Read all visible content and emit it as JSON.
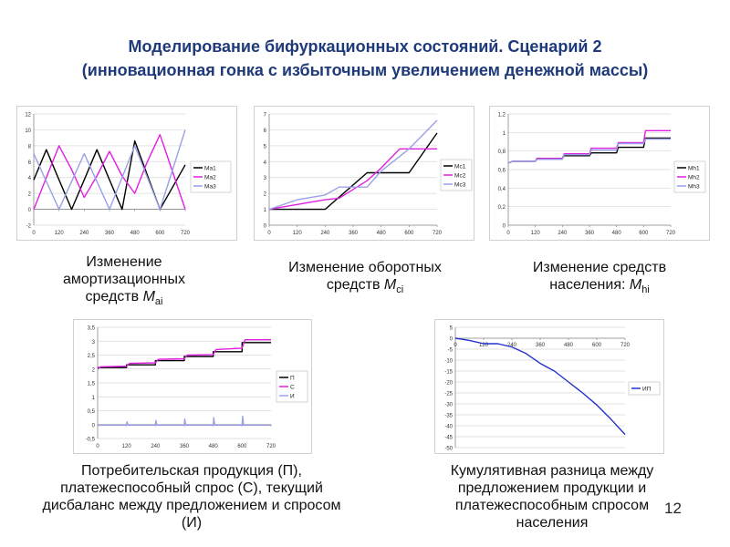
{
  "title_line1": "Моделирование бифуркационных состояний. Сценарий 2",
  "title_line2": "(инновационная гонка с избыточным увеличением денежной массы)",
  "page_number": "12",
  "captions": {
    "c1": {
      "text": "Изменение амортизационных средств ",
      "var": "M",
      "sub": "ai"
    },
    "c2": {
      "text": "Изменение оборотных средств ",
      "var": "M",
      "sub": "ci"
    },
    "c3": {
      "text": "Изменение средств населения: ",
      "var": "M",
      "sub": "hi"
    },
    "c4": {
      "text": "Потребительская продукция (П), платежеспособный спрос (С), текущий дисбаланс между предложением и спросом (И)"
    },
    "c5": {
      "text": "Кумулятивная разница между предложением продукции и платежеспособным спросом населения"
    }
  },
  "chart_data": [
    {
      "id": "ma",
      "type": "line",
      "xlim": [
        0,
        720
      ],
      "ylim": [
        -2,
        12
      ],
      "xticks": [
        "0",
        "120",
        "240",
        "360",
        "480",
        "600",
        "720"
      ],
      "yticks": [
        "-2",
        "0",
        "2",
        "4",
        "6",
        "8",
        "10",
        "12"
      ],
      "series": [
        {
          "name": "Ма1",
          "color": "#000000",
          "x": [
            0,
            60,
            120,
            180,
            240,
            300,
            360,
            420,
            480,
            540,
            600,
            660,
            720
          ],
          "y": [
            3.7,
            7.5,
            3.7,
            0,
            3.7,
            7.5,
            3.7,
            0,
            8.6,
            4.3,
            0,
            2.8,
            5.6
          ]
        },
        {
          "name": "Ма2",
          "color": "#e020e0",
          "x": [
            0,
            60,
            120,
            180,
            240,
            300,
            360,
            420,
            480,
            540,
            600,
            660,
            720
          ],
          "y": [
            0,
            4,
            8,
            5,
            1.5,
            4.2,
            7.3,
            4.2,
            2,
            6,
            9.4,
            4.7,
            0
          ]
        },
        {
          "name": "Ма3",
          "color": "#9aa0e6",
          "x": [
            0,
            60,
            120,
            180,
            240,
            300,
            360,
            420,
            480,
            540,
            600,
            660,
            720
          ],
          "y": [
            7,
            3.5,
            0,
            3.5,
            7,
            3.5,
            0,
            4,
            8,
            4,
            0,
            5,
            10
          ]
        }
      ]
    },
    {
      "id": "mc",
      "type": "line",
      "xlim": [
        0,
        720
      ],
      "ylim": [
        0,
        7
      ],
      "xticks": [
        "0",
        "120",
        "240",
        "360",
        "480",
        "600",
        "720"
      ],
      "yticks": [
        "0",
        "1",
        "2",
        "3",
        "4",
        "5",
        "6",
        "7"
      ],
      "series": [
        {
          "name": "Мс1",
          "color": "#000000",
          "x": [
            0,
            240,
            420,
            600,
            720
          ],
          "y": [
            1,
            1,
            3.3,
            3.3,
            5.8
          ]
        },
        {
          "name": "Мс2",
          "color": "#e020e0",
          "x": [
            0,
            240,
            300,
            420,
            480,
            560,
            600,
            720
          ],
          "y": [
            1,
            1.6,
            1.7,
            2.8,
            3.6,
            4.8,
            4.8,
            4.8
          ]
        },
        {
          "name": "Мс3",
          "color": "#9aa0e6",
          "x": [
            0,
            120,
            240,
            300,
            420,
            480,
            600,
            720
          ],
          "y": [
            1,
            1.6,
            1.9,
            2.4,
            2.4,
            3.4,
            4.8,
            6.6
          ]
        }
      ]
    },
    {
      "id": "mh",
      "type": "line",
      "xlim": [
        0,
        720
      ],
      "ylim": [
        0,
        1.2
      ],
      "xticks": [
        "0",
        "120",
        "240",
        "360",
        "480",
        "600",
        "720"
      ],
      "yticks": [
        "0",
        "0,2",
        "0,4",
        "0,6",
        "0,8",
        "1",
        "1,2"
      ],
      "series": [
        {
          "name": "Мh1",
          "color": "#000000",
          "x": [
            0,
            20,
            120,
            128,
            240,
            248,
            360,
            368,
            480,
            488,
            600,
            608,
            720
          ],
          "y": [
            0.67,
            0.69,
            0.69,
            0.72,
            0.72,
            0.75,
            0.75,
            0.78,
            0.78,
            0.84,
            0.84,
            0.94,
            0.94
          ]
        },
        {
          "name": "Мh2",
          "color": "#e020e0",
          "x": [
            0,
            20,
            120,
            128,
            240,
            248,
            360,
            368,
            480,
            488,
            600,
            608,
            720
          ],
          "y": [
            0.67,
            0.69,
            0.69,
            0.72,
            0.72,
            0.77,
            0.77,
            0.83,
            0.83,
            0.89,
            0.89,
            1.02,
            1.02
          ]
        },
        {
          "name": "Мh3",
          "color": "#9aa0e6",
          "x": [
            0,
            20,
            120,
            128,
            240,
            248,
            360,
            368,
            480,
            488,
            600,
            608,
            720
          ],
          "y": [
            0.67,
            0.69,
            0.69,
            0.71,
            0.71,
            0.76,
            0.76,
            0.81,
            0.81,
            0.88,
            0.88,
            0.93,
            0.93
          ]
        }
      ]
    },
    {
      "id": "psi",
      "type": "line",
      "xlim": [
        0,
        720
      ],
      "ylim": [
        -0.5,
        3.5
      ],
      "xticks": [
        "0",
        "120",
        "240",
        "360",
        "480",
        "600",
        "720"
      ],
      "yticks": [
        "-0,5",
        "0",
        "0,5",
        "1",
        "1,5",
        "2",
        "2,5",
        "3",
        "3,5"
      ],
      "series": [
        {
          "name": "П",
          "color": "#000000",
          "x": [
            0,
            120,
            120,
            240,
            240,
            360,
            360,
            480,
            480,
            600,
            600,
            720
          ],
          "y": [
            2.05,
            2.05,
            2.15,
            2.15,
            2.3,
            2.3,
            2.45,
            2.45,
            2.62,
            2.62,
            2.95,
            2.95
          ]
        },
        {
          "name": "С",
          "color": "#e020e0",
          "x": [
            0,
            12,
            120,
            132,
            240,
            252,
            360,
            372,
            480,
            492,
            600,
            612,
            720
          ],
          "y": [
            2.0,
            2.08,
            2.1,
            2.2,
            2.22,
            2.35,
            2.37,
            2.5,
            2.52,
            2.7,
            2.75,
            3.05,
            3.05
          ]
        },
        {
          "name": "И",
          "color": "#9aa0e6",
          "x": [
            0,
            10,
            120,
            122,
            126,
            130,
            240,
            242,
            246,
            250,
            360,
            362,
            366,
            370,
            480,
            482,
            486,
            490,
            600,
            602,
            606,
            610,
            720
          ],
          "y": [
            -0.02,
            -0.02,
            -0.02,
            0.1,
            -0.02,
            -0.02,
            -0.02,
            0.15,
            -0.02,
            -0.02,
            -0.02,
            0.2,
            -0.02,
            -0.02,
            -0.02,
            0.25,
            -0.02,
            -0.02,
            -0.02,
            0.3,
            -0.02,
            -0.02,
            -0.02
          ]
        }
      ]
    },
    {
      "id": "ip",
      "type": "line",
      "xlim": [
        0,
        720
      ],
      "ylim": [
        -50,
        5
      ],
      "xticks": [
        "0",
        "120",
        "240",
        "360",
        "480",
        "600",
        "720"
      ],
      "yticks": [
        "5",
        "0",
        "-5",
        "-10",
        "-15",
        "-20",
        "-25",
        "-30",
        "-35",
        "-40",
        "-45",
        "-50"
      ],
      "series": [
        {
          "name": "ИП",
          "color": "#2233cc",
          "x": [
            0,
            60,
            120,
            180,
            240,
            300,
            360,
            420,
            480,
            540,
            600,
            660,
            720
          ],
          "y": [
            0,
            -1,
            -2.5,
            -2.5,
            -4,
            -7,
            -11.5,
            -15,
            -20,
            -25,
            -30.5,
            -37,
            -44
          ]
        }
      ]
    }
  ]
}
